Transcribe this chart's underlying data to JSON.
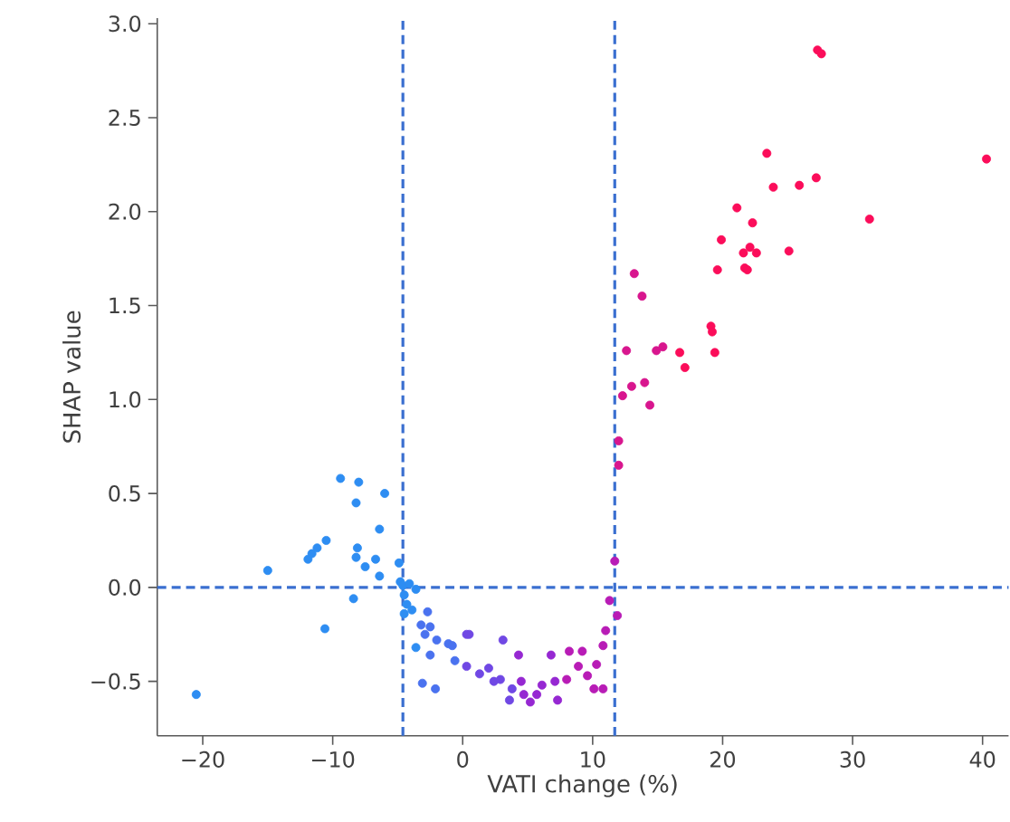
{
  "chart_data": {
    "type": "scatter",
    "xlabel": "VATI change (%)",
    "ylabel": "SHAP value",
    "xlim": [
      -23.5,
      42
    ],
    "ylim": [
      -0.79,
      3.03
    ],
    "xticks": [
      {
        "value": -20,
        "label": "−20"
      },
      {
        "value": -10,
        "label": "−10"
      },
      0,
      10,
      20,
      30,
      40
    ],
    "yticks": [
      {
        "value": -0.5,
        "label": "−0.5"
      },
      {
        "value": 0,
        "label": "0.0"
      },
      0.5,
      {
        "value": 1,
        "label": "1.0"
      },
      1.5,
      {
        "value": 2,
        "label": "2.0"
      },
      2.5,
      {
        "value": 3,
        "label": "3.0"
      }
    ],
    "marker": "circle",
    "ref_lines": [
      {
        "axis": "x",
        "value": -4.6,
        "color": "#3a6fd0",
        "line_style": "dashed"
      },
      {
        "axis": "x",
        "value": 11.7,
        "color": "#3a6fd0",
        "line_style": "dashed"
      },
      {
        "axis": "y",
        "value": 0,
        "color": "#3a6fd0",
        "line_style": "dashed"
      }
    ],
    "series": [
      {
        "x": [
          -20.5,
          -15.0,
          -11.9,
          -11.6,
          -11.2,
          -10.6,
          -10.5,
          -9.4,
          -8.4,
          -8.2,
          -8.2,
          -8.1,
          -8.0,
          -7.5,
          -6.7,
          -6.4,
          -6.4,
          -6.0,
          -4.9,
          -4.8,
          -4.6,
          -4.5,
          -4.5,
          -4.3,
          -4.1,
          -3.9,
          -3.6,
          -3.6,
          -3.2,
          -3.1,
          -2.9,
          -2.7,
          -2.5,
          -2.5,
          -2.1,
          -2.0,
          -1.1,
          -0.8,
          -0.6,
          0.3,
          0.3,
          0.5,
          1.3,
          2.0,
          2.4,
          2.9,
          3.1,
          3.6,
          3.8,
          4.3,
          4.5,
          4.7,
          5.2,
          5.7,
          6.1,
          6.8,
          7.1,
          7.3,
          8.0,
          8.2,
          8.9,
          9.2,
          9.6,
          10.1,
          10.3,
          10.8,
          10.8,
          11.0,
          11.3,
          11.7,
          11.9,
          12.0,
          12.0,
          12.3,
          12.6,
          13.0,
          13.2,
          13.8,
          14.0,
          14.4,
          14.9,
          15.4,
          16.7,
          17.1,
          19.1,
          19.2,
          19.4,
          19.6,
          19.9,
          21.1,
          21.6,
          21.7,
          21.9,
          22.1,
          22.3,
          22.6,
          23.4,
          23.9,
          25.1,
          25.9,
          27.2,
          27.3,
          27.6,
          31.3,
          40.3
        ],
        "values": [
          -0.57,
          0.09,
          0.15,
          0.18,
          0.21,
          -0.22,
          0.25,
          0.58,
          -0.06,
          0.45,
          0.16,
          0.21,
          0.56,
          0.11,
          0.15,
          0.31,
          0.06,
          0.5,
          0.13,
          0.03,
          0.01,
          -0.04,
          -0.14,
          -0.09,
          0.02,
          -0.12,
          -0.01,
          -0.32,
          -0.2,
          -0.51,
          -0.25,
          -0.13,
          -0.21,
          -0.36,
          -0.54,
          -0.28,
          -0.3,
          -0.31,
          -0.39,
          -0.25,
          -0.42,
          -0.25,
          -0.46,
          -0.43,
          -0.5,
          -0.49,
          -0.28,
          -0.6,
          -0.54,
          -0.36,
          -0.5,
          -0.57,
          -0.61,
          -0.57,
          -0.52,
          -0.36,
          -0.5,
          -0.6,
          -0.49,
          -0.34,
          -0.42,
          -0.34,
          -0.47,
          -0.54,
          -0.41,
          -0.54,
          -0.31,
          -0.23,
          -0.07,
          0.14,
          -0.15,
          0.78,
          0.65,
          1.02,
          1.26,
          1.07,
          1.67,
          1.55,
          1.09,
          0.97,
          1.26,
          1.28,
          1.25,
          1.17,
          1.39,
          1.36,
          1.25,
          1.69,
          1.85,
          2.02,
          1.78,
          1.7,
          1.69,
          1.81,
          1.94,
          1.78,
          2.31,
          2.13,
          1.79,
          2.14,
          2.18,
          2.86,
          2.84,
          1.96,
          2.28
        ],
        "colors": [
          "#2e8df2",
          "#2e8df2",
          "#2e8df2",
          "#2e8df2",
          "#2e8df2",
          "#2e8df2",
          "#2e8df2",
          "#2e8df2",
          "#2e8df2",
          "#2e8df2",
          "#2e8df2",
          "#2e8df2",
          "#2e8df2",
          "#2e8df2",
          "#2e8df2",
          "#2e8df2",
          "#2e8df2",
          "#2e8df2",
          "#2e8df2",
          "#2e8df2",
          "#2e8df2",
          "#2e8df2",
          "#2e8df2",
          "#2e8df2",
          "#2e8df2",
          "#2e8df2",
          "#2e8df2",
          "#2e8df2",
          "#4a72ef",
          "#4a72ef",
          "#4a72ef",
          "#4a72ef",
          "#4a72ef",
          "#4a72ef",
          "#4a72ef",
          "#4a72ef",
          "#4a72ef",
          "#4a72ef",
          "#4a72ef",
          "#7048e4",
          "#7048e4",
          "#7048e4",
          "#7048e4",
          "#7048e4",
          "#7048e4",
          "#7048e4",
          "#7048e4",
          "#7048e4",
          "#7048e4",
          "#9628d2",
          "#9628d2",
          "#9628d2",
          "#9628d2",
          "#9628d2",
          "#9628d2",
          "#9628d2",
          "#9628d2",
          "#9628d2",
          "#b81cb6",
          "#b81cb6",
          "#b81cb6",
          "#b81cb6",
          "#b81cb6",
          "#b81cb6",
          "#b81cb6",
          "#b81cb6",
          "#b81cb6",
          "#b81cb6",
          "#b81cb6",
          "#b81cb6",
          "#b81cb6",
          "#d8168e",
          "#d8168e",
          "#d8168e",
          "#d8168e",
          "#d8168e",
          "#d8168e",
          "#d8168e",
          "#d8168e",
          "#d8168e",
          "#d8168e",
          "#d8168e",
          "#fb0d5a",
          "#fb0d5a",
          "#fb0d5a",
          "#fb0d5a",
          "#fb0d5a",
          "#fb0d5a",
          "#fb0d5a",
          "#fb0d5a",
          "#fb0d5a",
          "#fb0d5a",
          "#fb0d5a",
          "#fb0d5a",
          "#fb0d5a",
          "#fb0d5a",
          "#fb0d5a",
          "#fb0d5a",
          "#fb0d5a",
          "#fb0d5a",
          "#fb0d5a",
          "#fb0d5a",
          "#fb0d5a",
          "#fb0d5a",
          "#fb0d5a"
        ]
      }
    ]
  }
}
